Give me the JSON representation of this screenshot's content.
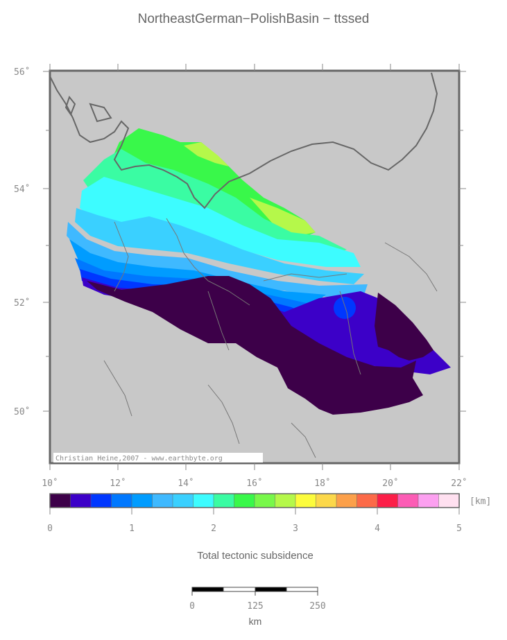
{
  "title": "NortheastGerman−PolishBasin − ttssed",
  "map": {
    "lon_ticks": [
      "10˚",
      "12˚",
      "14˚",
      "16˚",
      "18˚",
      "20˚",
      "22˚"
    ],
    "lat_ticks": [
      "50˚",
      "52˚",
      "54˚",
      "56˚"
    ],
    "credit": "Christian Heine,2007 - www.earthbyte.org",
    "background_color": "#c8c8c8"
  },
  "colorbar": {
    "unit": "[km]",
    "tick_labels": [
      "0",
      "1",
      "2",
      "3",
      "4",
      "5"
    ],
    "colors": [
      "#3d0049",
      "#3c00c8",
      "#0037ff",
      "#0078ff",
      "#009cff",
      "#3fb9ff",
      "#3ad0ff",
      "#3dfcff",
      "#3afca3",
      "#39f84a",
      "#78f84a",
      "#b5f84a",
      "#fcfc3c",
      "#fcd84a",
      "#fca04a",
      "#fc6a48",
      "#fc1e48",
      "#fc5cb5",
      "#fca0f0",
      "#ffe0f0"
    ],
    "caption": "Total tectonic subsidence"
  },
  "scalebar": {
    "labels": [
      "0",
      "125",
      "250"
    ],
    "unit": "km"
  }
}
